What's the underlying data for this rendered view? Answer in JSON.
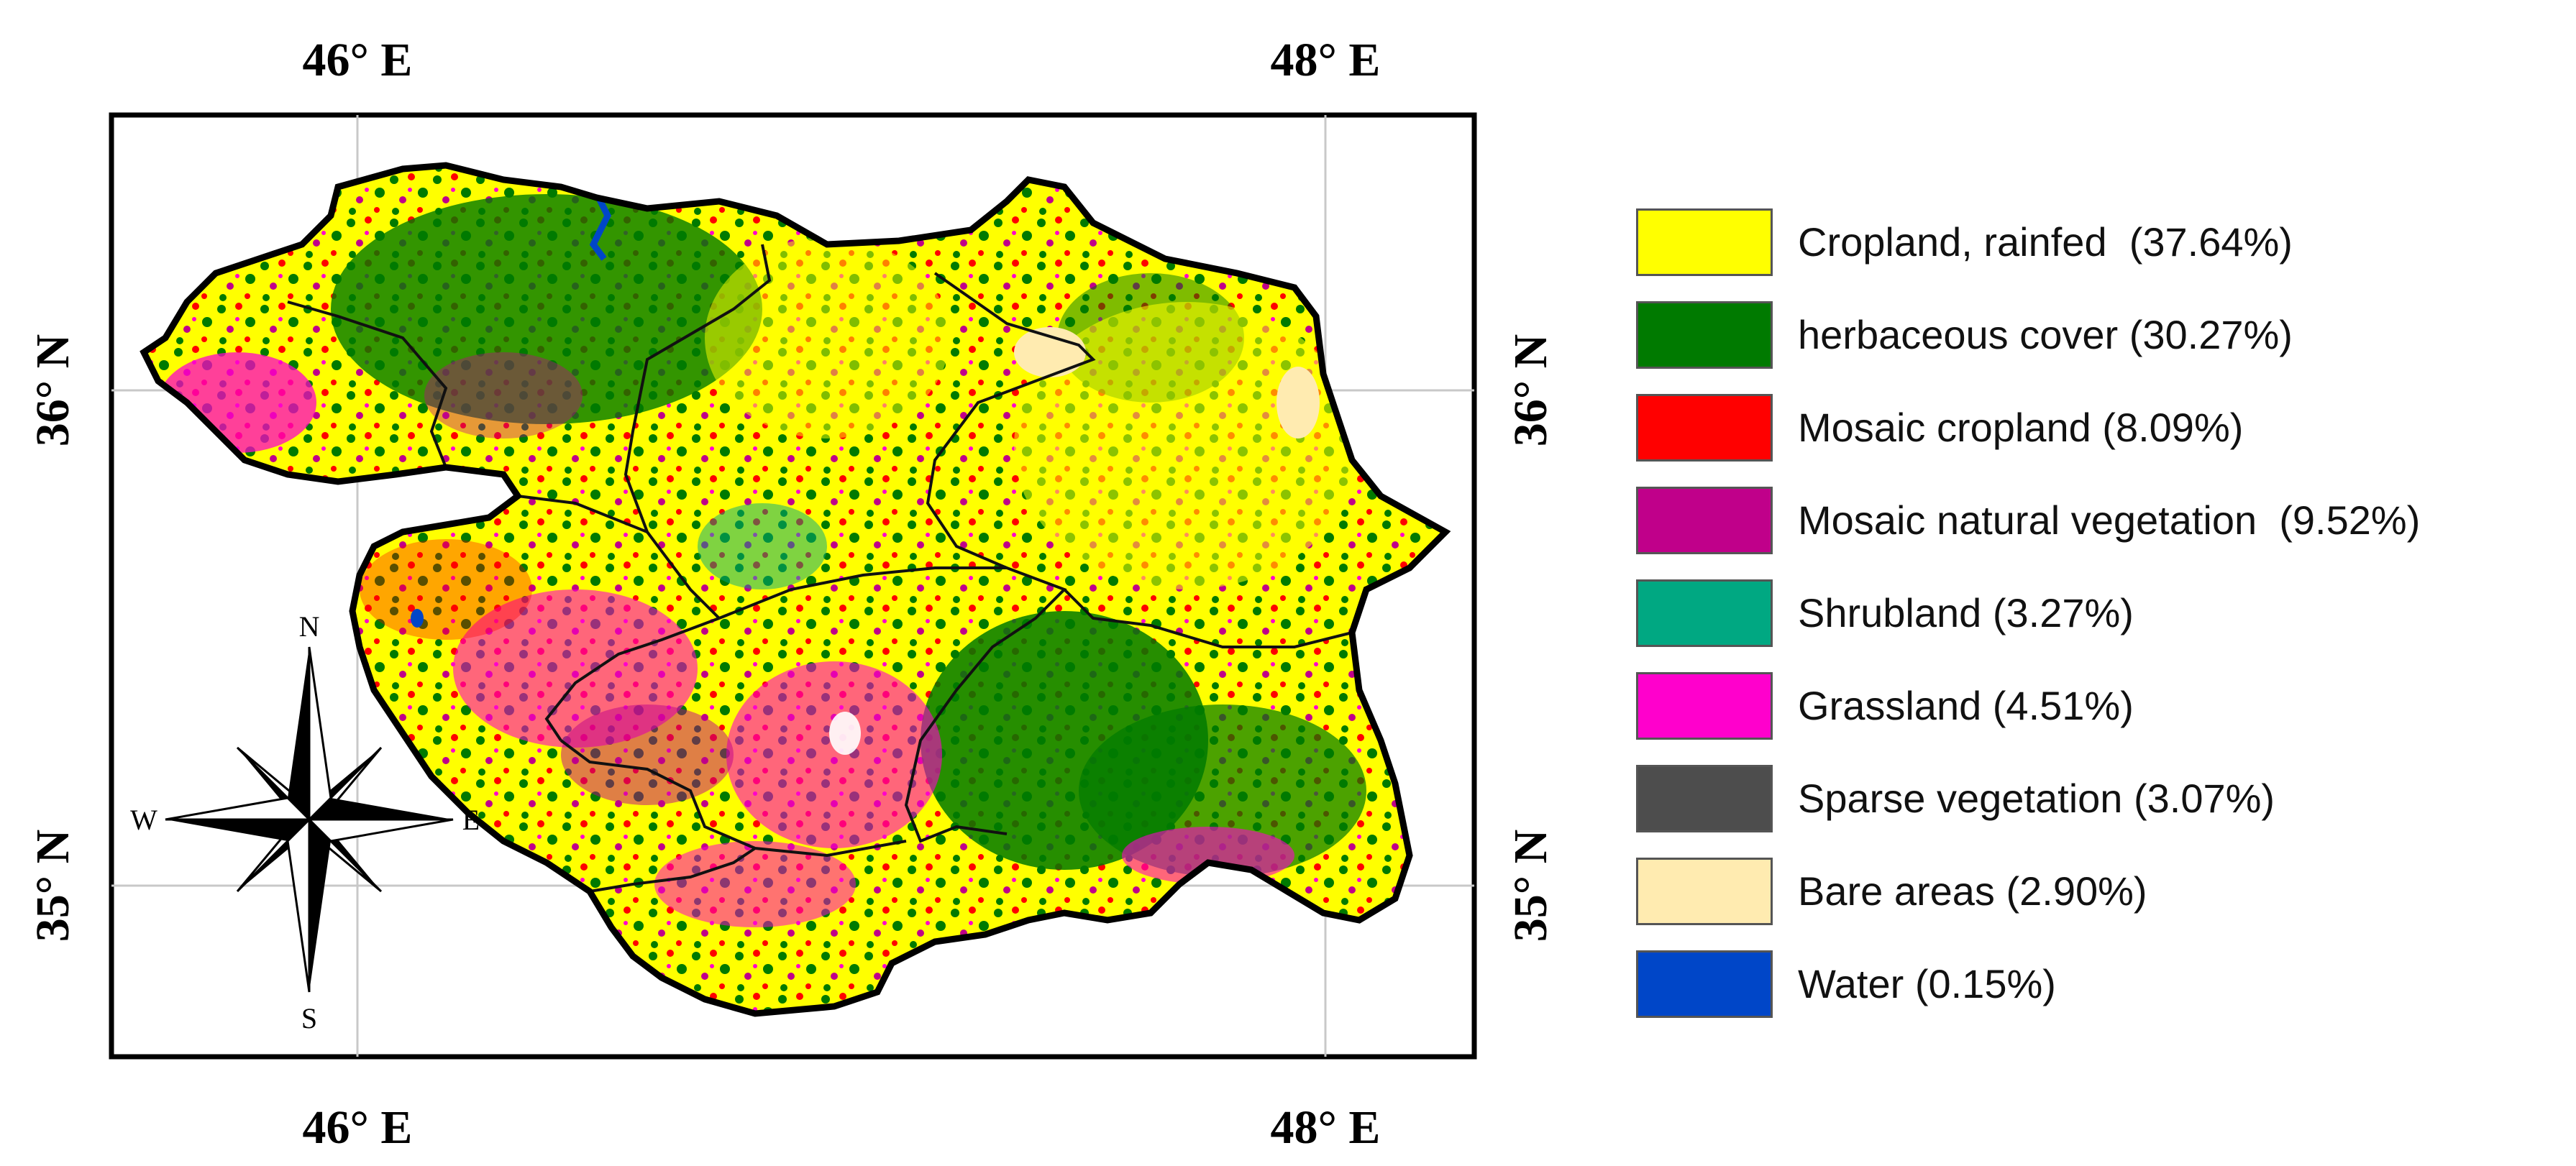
{
  "map": {
    "axis_labels": {
      "top": [
        "46° E",
        "48° E"
      ],
      "bottom": [
        "46° E",
        "48° E"
      ],
      "left": [
        "36° N",
        "35° N"
      ],
      "right": [
        "36° N",
        "35° N"
      ]
    },
    "compass": {
      "north": "N",
      "south": "S",
      "east": "E",
      "west": "W"
    },
    "colors": {
      "cropland_rainfed": "#ffff00",
      "herbaceous_cover": "#007a00",
      "mosaic_cropland": "#ff0000",
      "mosaic_natural_vegetation": "#c0008a",
      "shrubland": "#00a882",
      "grassland": "#ff00cc",
      "sparse_vegetation": "#4d4d4d",
      "bare_areas": "#ffebb0",
      "water": "#0046c8"
    }
  },
  "legend": [
    {
      "label": "Cropland, rainfed  (37.64%)",
      "color": "#ffff00"
    },
    {
      "label": "herbaceous cover (30.27%)",
      "color": "#007a00"
    },
    {
      "label": "Mosaic cropland (8.09%)",
      "color": "#ff0000"
    },
    {
      "label": "Mosaic natural vegetation  (9.52%)",
      "color": "#c0008a"
    },
    {
      "label": "Shrubland (3.27%)",
      "color": "#00a882"
    },
    {
      "label": "Grassland (4.51%)",
      "color": "#ff00cc"
    },
    {
      "label": "Sparse vegetation (3.07%)",
      "color": "#4d4d4d"
    },
    {
      "label": "Bare areas (2.90%)",
      "color": "#ffebb0"
    },
    {
      "label": "Water (0.15%)",
      "color": "#0046c8"
    }
  ]
}
